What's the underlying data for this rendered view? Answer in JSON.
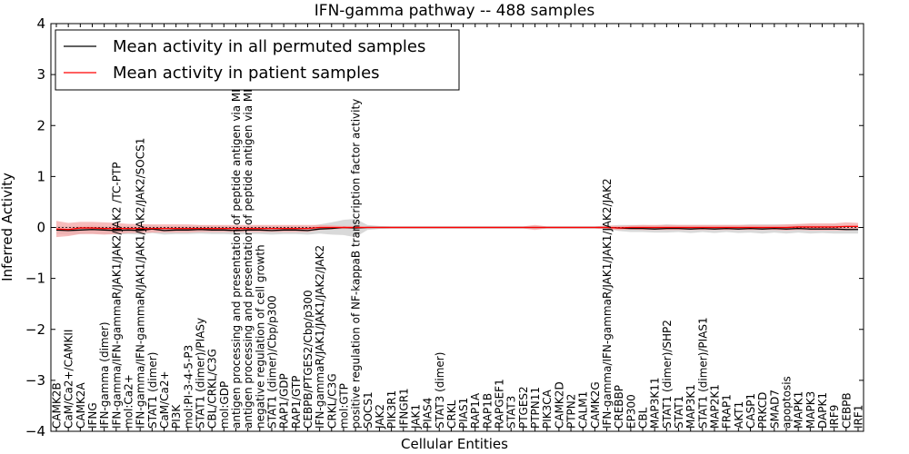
{
  "chart_data": {
    "type": "line",
    "title": "IFN-gamma pathway -- 488 samples",
    "xlabel": "Cellular Entities",
    "ylabel": "Inferred Activity",
    "ylim": [
      -4,
      4
    ],
    "yticks": [
      "4",
      "3",
      "2",
      "1",
      "0",
      "−1",
      "−2",
      "−3",
      "−4"
    ],
    "grid": false,
    "legend_position": "top-left",
    "legend": [
      {
        "label": "Mean activity in all permuted samples",
        "color": "#000000"
      },
      {
        "label": "Mean activity in patient samples",
        "color": "#ff0000"
      }
    ],
    "categories": [
      "CAMK2B",
      "CaM/Ca2+/CAMKII",
      "CAMK2A",
      "IFNG",
      "IFN-gamma (dimer)",
      "IFN-gamma/IFN-gammaR/JAK1/JAK2/JAK2  /TC-PTP",
      "mol:Ca2+",
      "IFN-gamma/IFN-gammaR/JAK1/JAK1/JAK2/JAK2/SOCS1",
      "STAT1 (dimer)",
      "CaM/Ca2+",
      "PI3K",
      "mol:PI-3-4-5-P3",
      "STAT1 (dimer)/PIASy",
      "CBL/CRKL/C3G",
      "mol:GDP",
      "antigen processing and presentation of peptide antigen via MHC class I",
      "antigen processing and presentation of peptide antigen via MHC class II",
      "negative regulation of cell growth",
      "STAT1 (dimer)/Cbp/p300",
      "RAP1/GDP",
      "RAP1/GTP",
      "CEBPB/PTGES2/Cbp/p300",
      "IFN-gammaR/JAK1/JAK1/JAK2/JAK2",
      "CRKL/C3G",
      "mol:GTP",
      "positive regulation of NF-kappaB transcription factor activity",
      "SOCS1",
      "JAK2",
      "PIK3R1",
      "IFNGR1",
      "JAK1",
      "PIAS4",
      "STAT3 (dimer)",
      "CRKL",
      "PIAS1",
      "RAP1A",
      "RAP1B",
      "RAPGEF1",
      "STAT3",
      "PTGES2",
      "PTPN11",
      "PIK3CA",
      "CAMK2D",
      "PTPN2",
      "CALM1",
      "CAMK2G",
      "IFN-gamma/IFN-gammaR/JAK1/JAK1/JAK2/JAK2",
      "CREBBP",
      "EP300",
      "CBL",
      "MAP3K11",
      "STAT1 (dimer)/SHP2",
      "STAT1",
      "MAP3K1",
      "STAT1 (dimer)/PIAS1",
      "MAP2K1",
      "FRAP1",
      "AKT1",
      "CASP1",
      "PRKCD",
      "SMAD7",
      "apoptosis",
      "MAPK1",
      "MAPK3",
      "DAPK1",
      "IRF9",
      "CEBPB",
      "IRF1"
    ],
    "series": [
      {
        "name": "Mean activity in all permuted samples",
        "color": "#000000",
        "band_color": "#cccccc",
        "values": [
          -0.05,
          -0.06,
          -0.05,
          -0.04,
          -0.05,
          -0.06,
          -0.05,
          -0.06,
          -0.03,
          -0.06,
          -0.05,
          -0.05,
          -0.04,
          -0.05,
          -0.05,
          -0.06,
          -0.05,
          -0.05,
          -0.06,
          -0.05,
          -0.05,
          -0.06,
          -0.03,
          -0.02,
          0.0,
          -0.01,
          0.0,
          0.0,
          0.0,
          0.0,
          0.0,
          0.0,
          0.0,
          0.0,
          0.0,
          0.0,
          0.0,
          0.0,
          0.0,
          0.0,
          0.0,
          0.0,
          0.0,
          0.0,
          0.0,
          0.0,
          0.0,
          -0.01,
          -0.02,
          -0.02,
          -0.03,
          -0.02,
          -0.02,
          -0.03,
          -0.02,
          -0.03,
          -0.02,
          -0.03,
          -0.02,
          -0.03,
          -0.02,
          -0.03,
          -0.02,
          -0.03,
          -0.03,
          -0.03,
          -0.04,
          -0.04
        ],
        "band": [
          0.08,
          0.08,
          0.08,
          0.08,
          0.08,
          0.08,
          0.08,
          0.08,
          0.08,
          0.08,
          0.08,
          0.08,
          0.08,
          0.08,
          0.08,
          0.08,
          0.08,
          0.08,
          0.08,
          0.08,
          0.08,
          0.08,
          0.09,
          0.12,
          0.15,
          0.18,
          0.05,
          0.03,
          0.02,
          0.02,
          0.02,
          0.02,
          0.02,
          0.02,
          0.02,
          0.02,
          0.02,
          0.02,
          0.02,
          0.02,
          0.02,
          0.02,
          0.02,
          0.02,
          0.02,
          0.02,
          0.03,
          0.06,
          0.07,
          0.07,
          0.07,
          0.08,
          0.07,
          0.08,
          0.07,
          0.08,
          0.07,
          0.08,
          0.08,
          0.09,
          0.08,
          0.09,
          0.08,
          0.09,
          0.08,
          0.09,
          0.08,
          0.08
        ]
      },
      {
        "name": "Mean activity in patient samples",
        "color": "#ff0000",
        "band_color": "#f4a6a6",
        "values": [
          -0.03,
          -0.04,
          -0.01,
          -0.01,
          -0.02,
          -0.02,
          -0.02,
          -0.02,
          -0.02,
          -0.02,
          -0.02,
          -0.02,
          -0.02,
          -0.02,
          -0.02,
          -0.02,
          -0.02,
          -0.02,
          -0.02,
          -0.02,
          -0.02,
          -0.02,
          0.0,
          0.0,
          0.0,
          0.0,
          0.0,
          0.0,
          0.0,
          0.0,
          0.0,
          0.0,
          0.0,
          0.0,
          0.0,
          0.0,
          0.0,
          0.0,
          0.0,
          0.0,
          0.0,
          0.0,
          0.0,
          0.0,
          0.0,
          0.0,
          0.0,
          -0.01,
          0.0,
          0.0,
          0.0,
          0.0,
          0.0,
          0.0,
          0.0,
          0.0,
          0.0,
          0.0,
          0.0,
          0.0,
          0.0,
          0.0,
          0.01,
          0.01,
          0.01,
          0.01,
          0.02,
          0.02
        ],
        "band": [
          0.16,
          0.13,
          0.12,
          0.12,
          0.12,
          0.11,
          0.09,
          0.09,
          0.08,
          0.08,
          0.08,
          0.08,
          0.07,
          0.07,
          0.07,
          0.07,
          0.07,
          0.07,
          0.07,
          0.07,
          0.07,
          0.07,
          0.05,
          0.04,
          0.03,
          0.03,
          0.02,
          0.02,
          0.02,
          0.02,
          0.02,
          0.02,
          0.02,
          0.02,
          0.02,
          0.02,
          0.02,
          0.02,
          0.02,
          0.02,
          0.05,
          0.02,
          0.02,
          0.02,
          0.02,
          0.02,
          0.04,
          0.04,
          0.04,
          0.05,
          0.05,
          0.05,
          0.05,
          0.05,
          0.05,
          0.05,
          0.05,
          0.05,
          0.05,
          0.05,
          0.05,
          0.06,
          0.06,
          0.07,
          0.07,
          0.07,
          0.08,
          0.07
        ]
      }
    ]
  }
}
